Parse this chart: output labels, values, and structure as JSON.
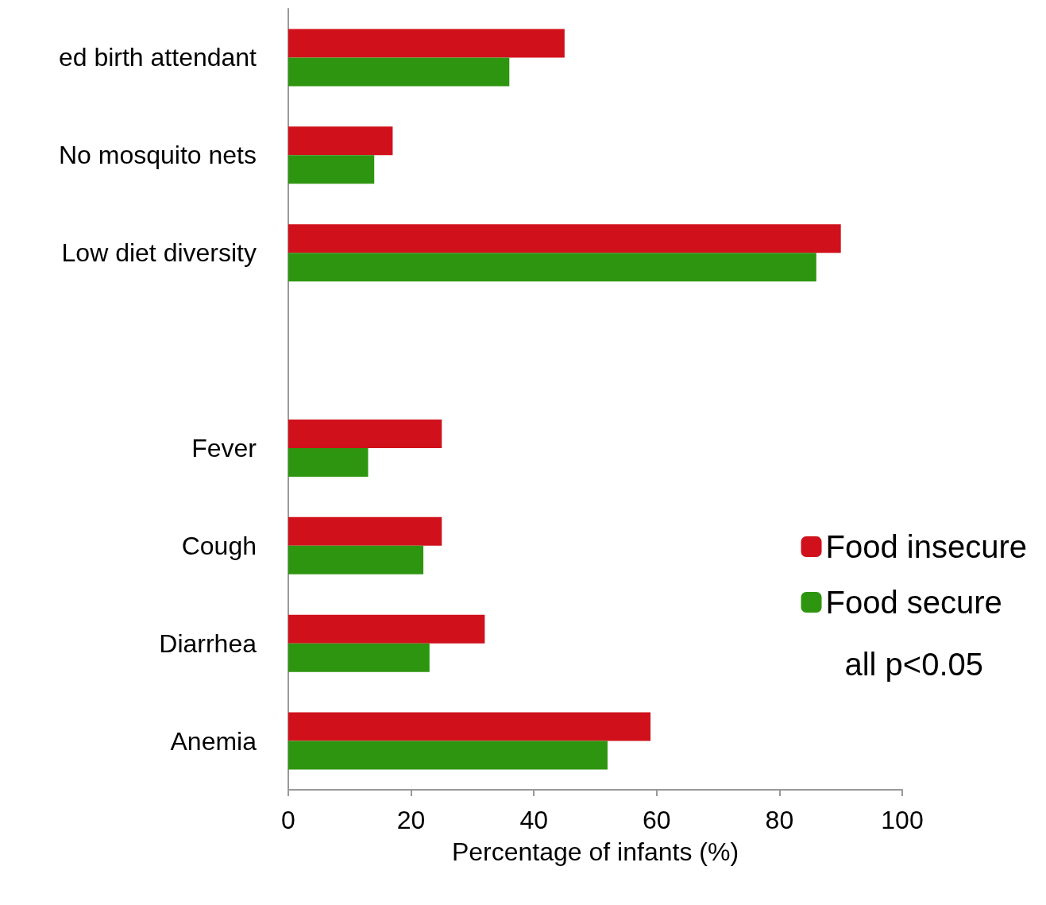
{
  "chart_data": {
    "type": "bar",
    "orientation": "horizontal",
    "xlabel": "Percentage of infants (%)",
    "categories": [
      "ed birth attendant",
      "No mosquito nets",
      "Low diet diversity",
      null,
      "Fever",
      "Cough",
      "Diarrhea",
      "Anemia"
    ],
    "series": [
      {
        "name": "Food insecure",
        "color": "#d0111b",
        "values": [
          45,
          17,
          90,
          null,
          25,
          25,
          32,
          59
        ]
      },
      {
        "name": "Food secure",
        "color": "#2e9510",
        "values": [
          36,
          14,
          86,
          null,
          13,
          22,
          23,
          52
        ]
      }
    ],
    "xlim": [
      0,
      100
    ],
    "xticks": [
      0,
      20,
      40,
      60,
      80,
      100
    ],
    "grid": false,
    "legend": "bottom right",
    "annotations": [
      "all p<0.05"
    ]
  }
}
